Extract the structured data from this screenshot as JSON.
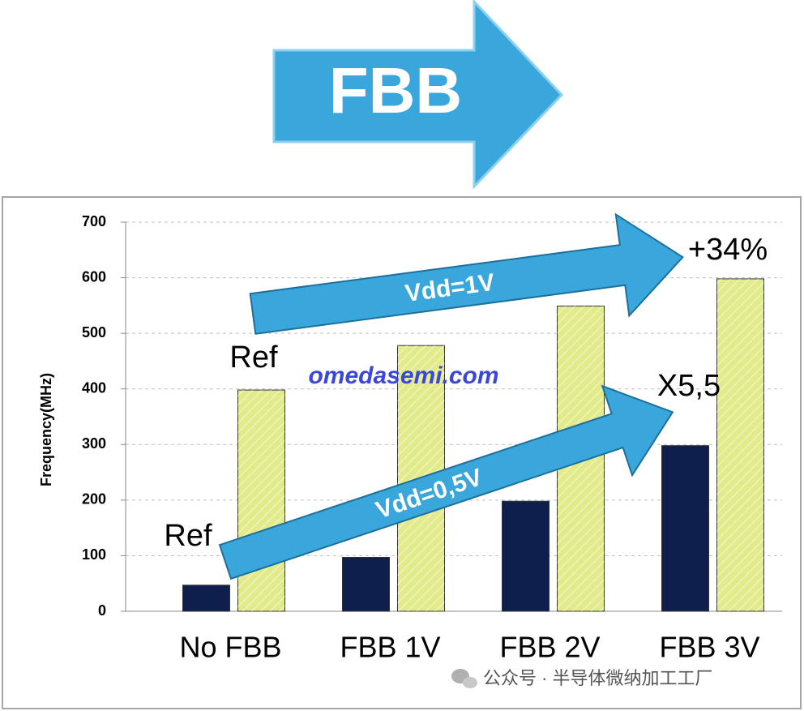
{
  "header": {
    "title": "FBB"
  },
  "chart_data": {
    "type": "bar",
    "y_label": "Frequency(MHz)",
    "categories": [
      "No FBB",
      "FBB 1V",
      "FBB 2V",
      "FBB 3V"
    ],
    "series": [
      {
        "color": "#0e1f4d",
        "values": [
          47,
          97,
          198,
          298
        ]
      },
      {
        "color": "#e2ea8a",
        "values": [
          398,
          478,
          549,
          598
        ]
      }
    ],
    "ylim": [
      0,
      700
    ],
    "yticks": [
      0,
      100,
      200,
      300,
      400,
      500,
      600,
      700
    ],
    "grid": true,
    "annotations": {
      "ref_high": "Ref",
      "ref_low": "Ref",
      "gain_1v": "+34%",
      "gain_05v": "X5,5",
      "arrow_1v": "Vdd=1V",
      "arrow_05v": "Vdd=0,5V"
    }
  },
  "watermark": {
    "site": "omedasemi.com",
    "account": "公众号 · 半导体微纳加工工厂"
  }
}
